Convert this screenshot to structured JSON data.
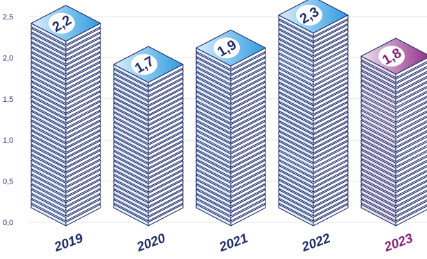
{
  "chart_data": {
    "type": "bar",
    "categories": [
      "2019",
      "2020",
      "2021",
      "2022",
      "2023"
    ],
    "values": [
      2.2,
      1.7,
      1.9,
      2.3,
      1.8
    ],
    "value_labels": [
      "2,2",
      "1,7",
      "1,9",
      "2,3",
      "1,8"
    ],
    "y_ticks": [
      "0,0",
      "0,5",
      "1,0",
      "1,5",
      "2,0",
      "2,5"
    ],
    "ylim": [
      0,
      2.5
    ],
    "grid": true,
    "legend": "none",
    "highlight_index": 4
  },
  "colors": {
    "text": "#1f2d6b",
    "grid": "#e2e4ea",
    "stroke": "#1f2d6b",
    "blue_face": "#e4f0fb",
    "blue_top_light": "#dbeffc",
    "blue_top_dark": "#2d9be0",
    "blue_side": "#ffffff",
    "purple_text": "#8a1f78",
    "purple_face": "#ece0ec",
    "purple_top_light": "#efe1f0",
    "purple_top_dark": "#8f2d86"
  }
}
